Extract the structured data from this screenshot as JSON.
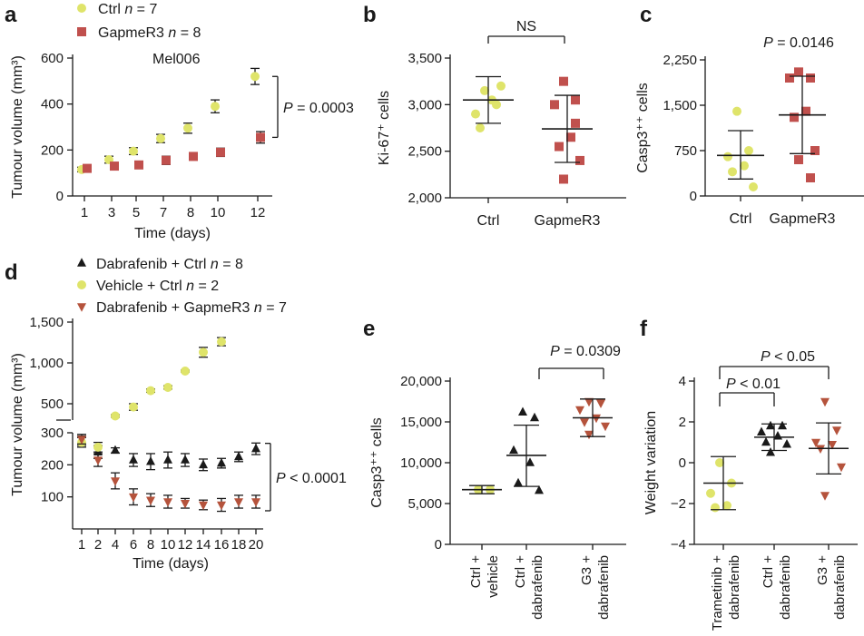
{
  "colors": {
    "ctrl": "#dfe46a",
    "gapmer": "#c0504d",
    "dab": "#1a1a1a",
    "g3": "#b5533c",
    "axis": "#1a1a1a"
  },
  "chart_data": [
    {
      "panel": "a",
      "type": "line",
      "subtitle": "Mel006",
      "xlabel": "Time (days)",
      "ylabel": "Tumour volume (mm³)",
      "x_ticks": [
        "1",
        "3",
        "5",
        "7",
        "8",
        "10",
        "12"
      ],
      "y_ticks": [
        0,
        200,
        400,
        600
      ],
      "ylim": [
        0,
        600
      ],
      "legend": [
        "Ctrl n = 7",
        "GapmeR3 n = 8"
      ],
      "series": [
        {
          "name": "Ctrl n = 7",
          "marker": "circle",
          "color": "#dfe46a",
          "values": [
            115,
            158,
            195,
            250,
            295,
            390,
            520
          ],
          "errors": [
            10,
            15,
            15,
            18,
            22,
            28,
            35
          ]
        },
        {
          "name": "GapmeR3 n = 8",
          "marker": "square",
          "color": "#c0504d",
          "values": [
            120,
            130,
            135,
            155,
            172,
            190,
            255
          ],
          "errors": [
            10,
            12,
            12,
            18,
            15,
            18,
            25
          ]
        }
      ],
      "annotation": "P = 0.0003"
    },
    {
      "panel": "b",
      "type": "scatter",
      "ylabel": "Ki-67⁺ cells",
      "categories": [
        "Ctrl",
        "GapmeR3"
      ],
      "y_ticks": [
        "2,000",
        "2,500",
        "3,000",
        "3,500"
      ],
      "ylim": [
        2000,
        3500
      ],
      "points": [
        [
          3150,
          3000,
          2900,
          3050,
          2750,
          3200
        ],
        [
          3250,
          3050,
          3000,
          2650,
          2550,
          2400,
          2200,
          2800
        ]
      ],
      "means": [
        3050,
        2740
      ],
      "sd_upper": [
        3300,
        3100
      ],
      "sd_lower": [
        2800,
        2380
      ],
      "annotation": "NS"
    },
    {
      "panel": "c",
      "type": "scatter",
      "ylabel": "Casp3⁺⁺ cells",
      "categories": [
        "Ctrl",
        "GapmeR3"
      ],
      "y_ticks": [
        "0",
        "750",
        "1,500",
        "2,250"
      ],
      "ylim": [
        0,
        2250
      ],
      "points": [
        [
          1400,
          750,
          650,
          500,
          400,
          150
        ],
        [
          2050,
          1950,
          1950,
          1400,
          1300,
          750,
          600,
          300
        ]
      ],
      "means": [
        670,
        1340
      ],
      "sd_upper": [
        1080,
        1980
      ],
      "sd_lower": [
        280,
        700
      ],
      "annotation": "P = 0.0146"
    },
    {
      "panel": "d",
      "type": "line",
      "xlabel": "Time (days)",
      "ylabel": "Tumour volume (mm³)",
      "x_ticks": [
        "1",
        "2",
        "4",
        "6",
        "8",
        "10",
        "12",
        "14",
        "16",
        "18",
        "20"
      ],
      "y_ticks_upper": [
        "500",
        "1,000",
        "1,500"
      ],
      "y_ticks_lower": [
        "100",
        "200",
        "300"
      ],
      "legend": [
        "Dabrafenib + Ctrl n = 8",
        "Vehicle + Ctrl n = 2",
        "Dabrafenib + GapmeR3 n = 7"
      ],
      "series": [
        {
          "name": "Dabrafenib + Ctrl n = 8",
          "marker": "triangle-up",
          "color": "#1a1a1a",
          "values": [
            275,
            240,
            245,
            215,
            210,
            215,
            215,
            200,
            205,
            225,
            250
          ],
          "errors": [
            15,
            20,
            8,
            20,
            25,
            25,
            20,
            18,
            15,
            15,
            18
          ]
        },
        {
          "name": "Vehicle + Ctrl n = 2",
          "marker": "circle",
          "color": "#dfe46a",
          "values": [
            270,
            255,
            350,
            460,
            660,
            700,
            900,
            1130,
            1260,
            null,
            null
          ],
          "errors": [
            15,
            15,
            15,
            40,
            20,
            20,
            10,
            60,
            50,
            null,
            null
          ]
        },
        {
          "name": "Dabrafenib + GapmeR3 n = 7",
          "marker": "triangle-down",
          "color": "#b5533c",
          "values": [
            280,
            215,
            150,
            100,
            90,
            85,
            80,
            75,
            75,
            85,
            85
          ],
          "errors": [
            15,
            20,
            25,
            25,
            20,
            20,
            15,
            15,
            20,
            20,
            20
          ]
        }
      ],
      "annotation": "P < 0.0001"
    },
    {
      "panel": "e",
      "type": "scatter",
      "ylabel": "Casp3⁺⁺ cells",
      "categories": [
        "Ctrl + vehicle",
        "Ctrl + dabrafenib",
        "G3 + dabrafenib"
      ],
      "y_ticks": [
        "0",
        "5,000",
        "10,000",
        "15,000",
        "20,000"
      ],
      "ylim": [
        0,
        20000
      ],
      "points": [
        [
          6700,
          6700
        ],
        [
          16200,
          15500,
          11500,
          10000,
          7500,
          6600
        ],
        [
          17500,
          17300,
          16500,
          15500,
          15000,
          14500,
          13500
        ]
      ],
      "means": [
        6700,
        10900,
        15500
      ],
      "sd_upper": [
        7200,
        14600,
        17800
      ],
      "sd_lower": [
        6200,
        7100,
        13200
      ],
      "annotation": "P = 0.0309"
    },
    {
      "panel": "f",
      "type": "scatter",
      "ylabel": "Weight variation",
      "categories": [
        "Trametinib + dabrafenib",
        "Ctrl + dabrafenib",
        "G3 + dabrafenib"
      ],
      "y_ticks": [
        "−4",
        "−2",
        "0",
        "2",
        "4"
      ],
      "ylim": [
        -4,
        4
      ],
      "points": [
        [
          0,
          -1.0,
          -1.5,
          -2.1,
          -2.2
        ],
        [
          1.8,
          1.8,
          1.5,
          1.3,
          1.0,
          0.9,
          0.5
        ],
        [
          3.0,
          1.6,
          1.0,
          0.9,
          0.7,
          -0.2,
          -1.6
        ]
      ],
      "means": [
        -1.0,
        1.25,
        0.7
      ],
      "sd_upper": [
        0.3,
        1.9,
        1.95
      ],
      "sd_lower": [
        -2.3,
        0.6,
        -0.55
      ],
      "annotations": [
        "P < 0.01",
        "P < 0.05"
      ]
    }
  ]
}
